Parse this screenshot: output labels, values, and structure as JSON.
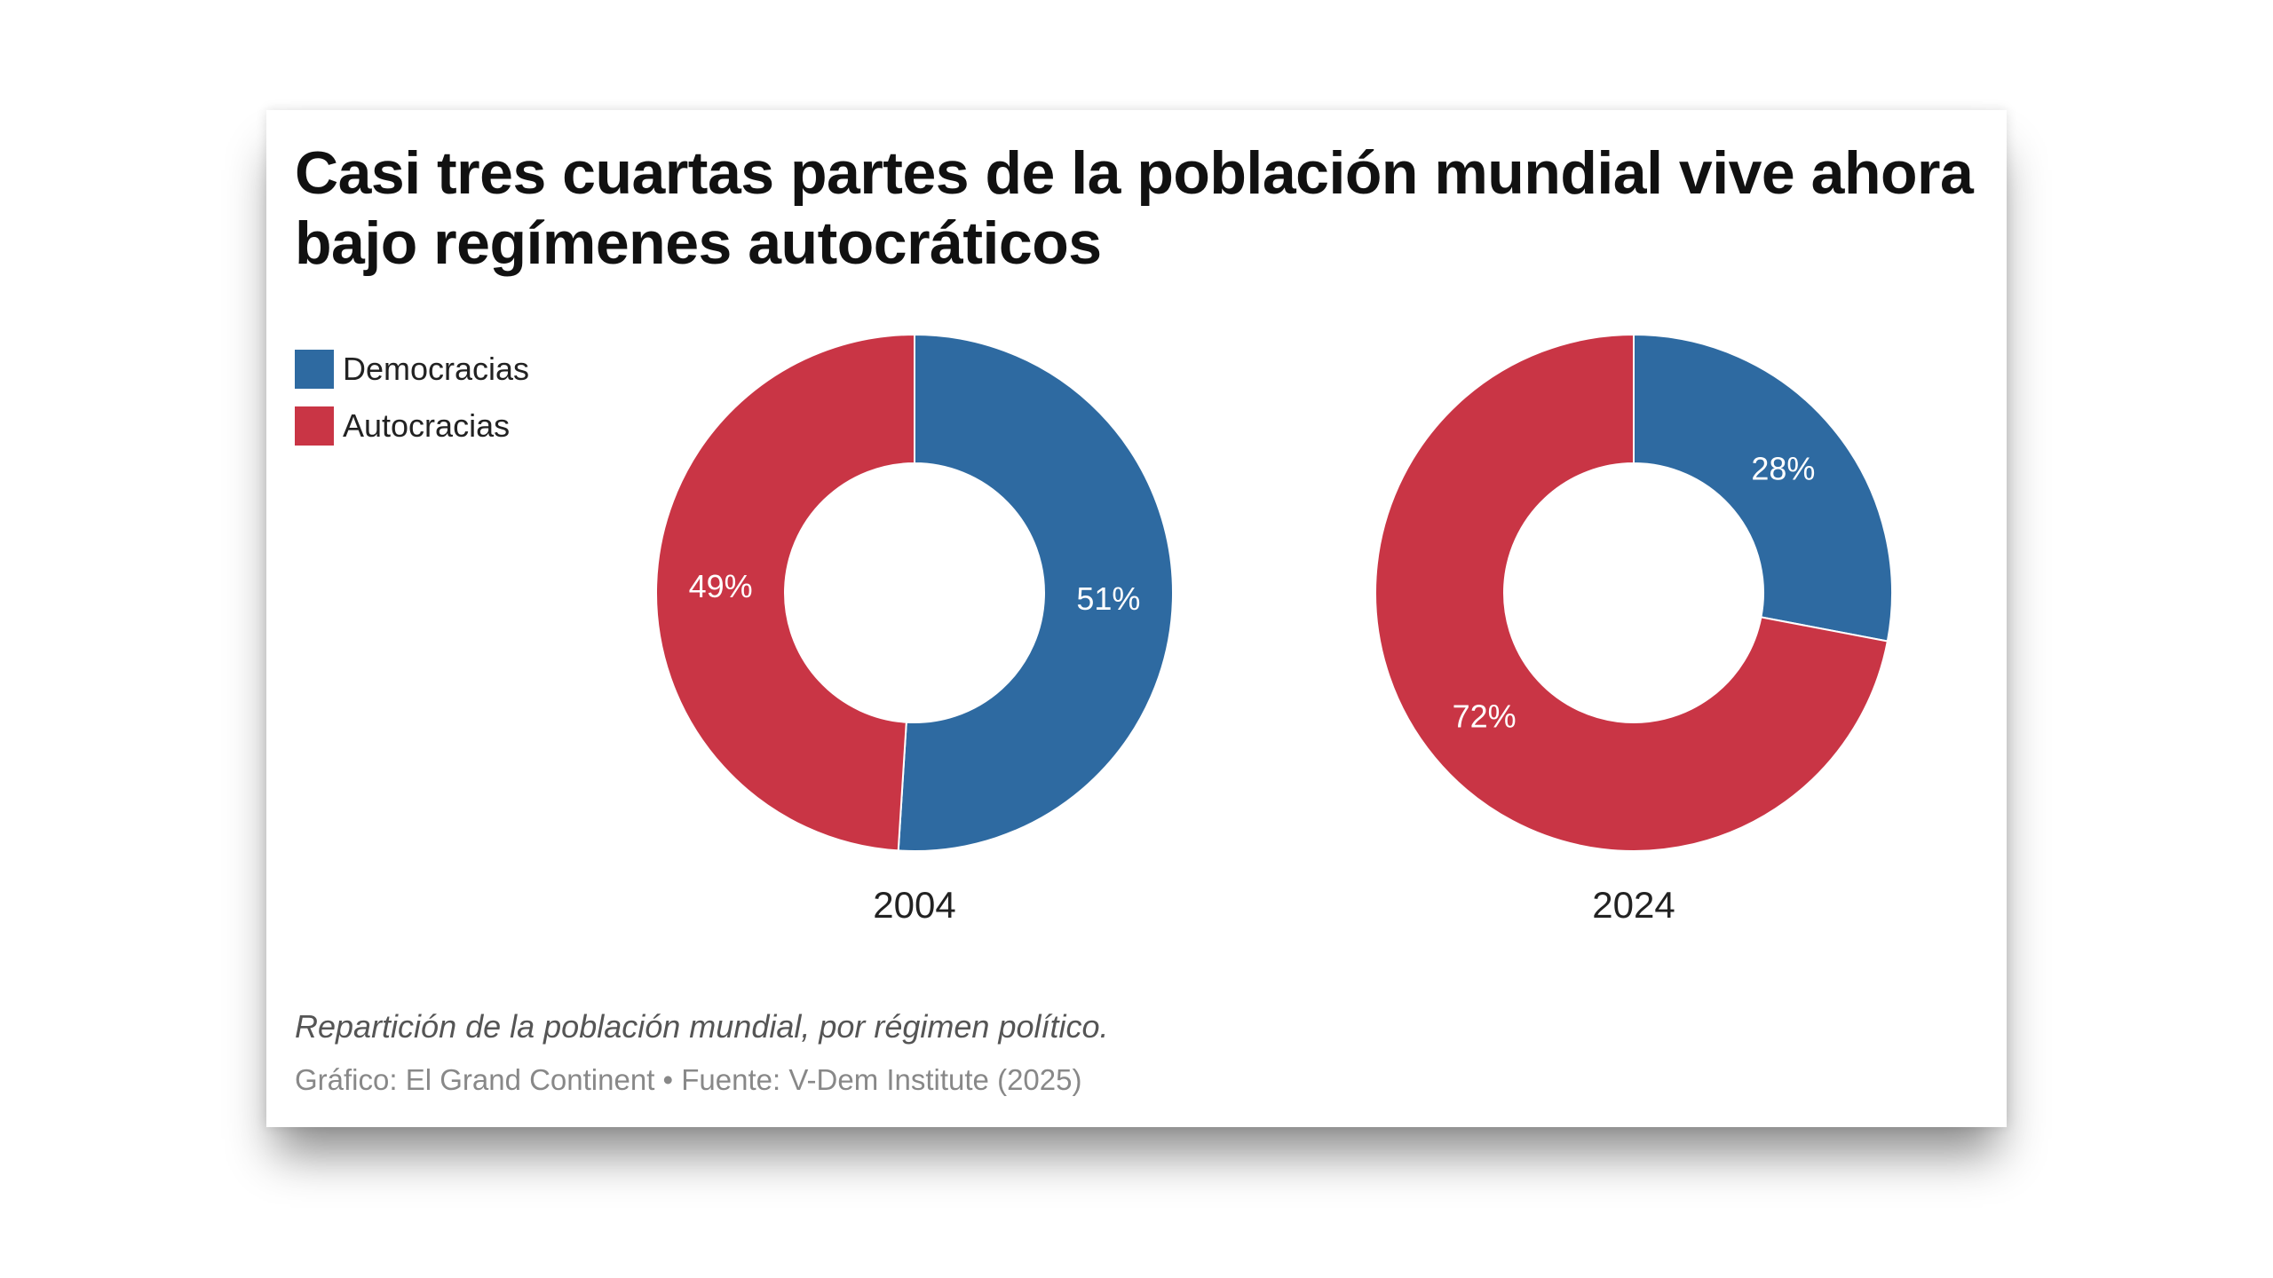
{
  "chart_data": {
    "type": "pie",
    "title": "Casi tres cuartas partes de la población mundial vive ahora bajo regímenes autocráticos",
    "subtitle": "Repartición de la población mundial, por régimen político.",
    "source": "Gráfico: El Grand Continent • Fuente: V-Dem Institute (2025)",
    "legend_position": "top-left",
    "legend": [
      {
        "name": "Democracias",
        "color": "#2e6aa1"
      },
      {
        "name": "Autocracias",
        "color": "#c93545"
      }
    ],
    "charts": [
      {
        "label": "2004",
        "slices": [
          {
            "name": "Democracias",
            "value": 51,
            "label": "51%"
          },
          {
            "name": "Autocracias",
            "value": 49,
            "label": "49%"
          }
        ]
      },
      {
        "label": "2024",
        "slices": [
          {
            "name": "Democracias",
            "value": 28,
            "label": "28%"
          },
          {
            "name": "Autocracias",
            "value": 72,
            "label": "72%"
          }
        ]
      }
    ]
  }
}
